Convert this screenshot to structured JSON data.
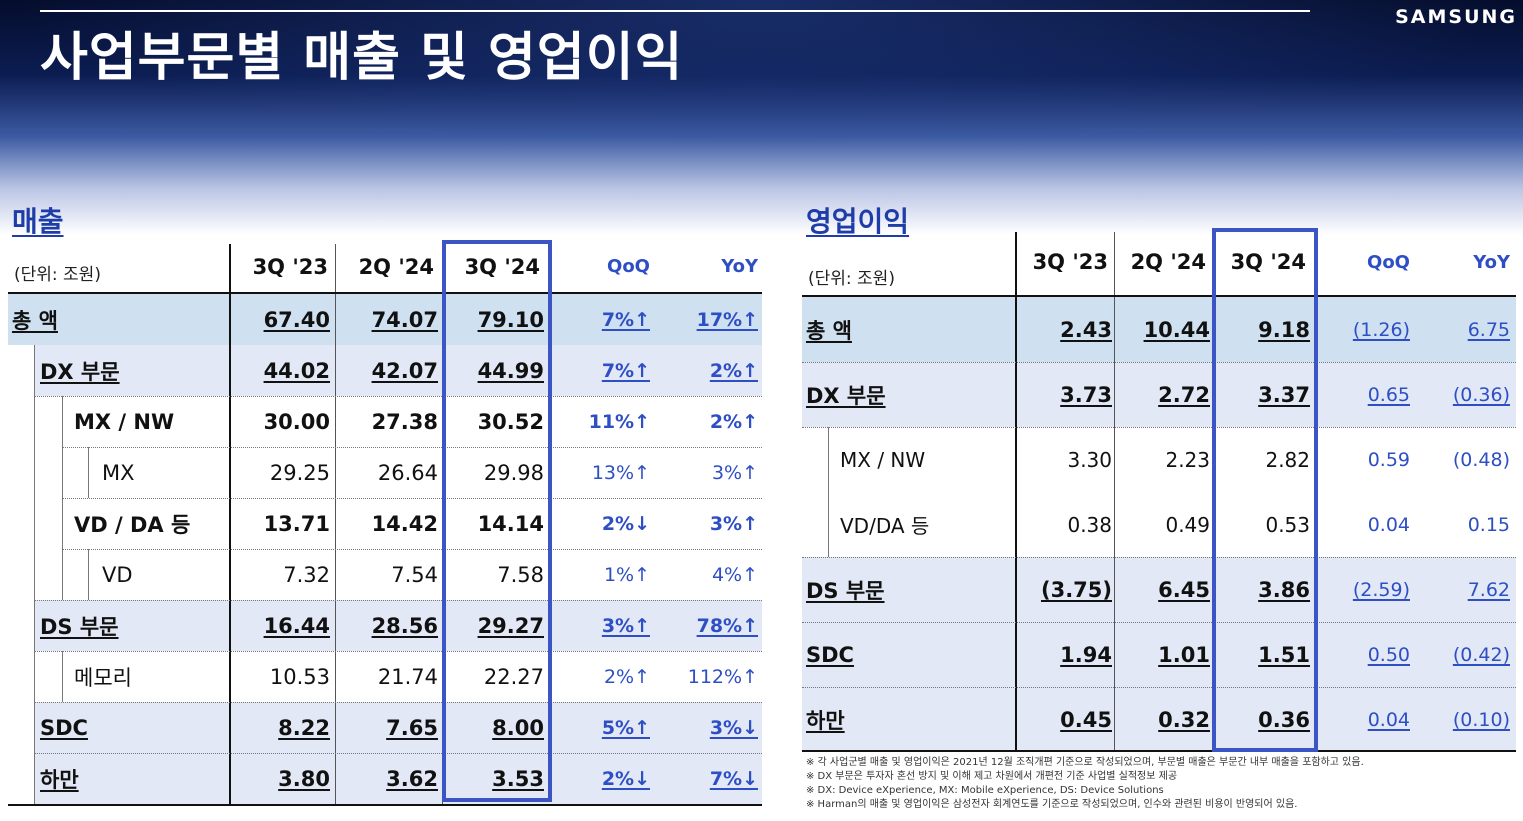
{
  "header": {
    "title": "사업부문별 매출 및 영업이익",
    "brand": "SAMSUNG"
  },
  "revenue": {
    "title": "매출",
    "unit": "(단위: 조원)",
    "columns": [
      "3Q '23",
      "2Q '24",
      "3Q '24",
      "QoQ",
      "YoY"
    ],
    "rows": [
      {
        "label": "총 액",
        "v1": "67.40",
        "v2": "74.07",
        "v3": "79.10",
        "qoq": "7%↑",
        "yoy": "17%↑"
      },
      {
        "label": "DX 부문",
        "v1": "44.02",
        "v2": "42.07",
        "v3": "44.99",
        "qoq": "7%↑",
        "yoy": "2%↑"
      },
      {
        "label": "MX / NW",
        "v1": "30.00",
        "v2": "27.38",
        "v3": "30.52",
        "qoq": "11%↑",
        "yoy": "2%↑"
      },
      {
        "label": "MX",
        "v1": "29.25",
        "v2": "26.64",
        "v3": "29.98",
        "qoq": "13%↑",
        "yoy": "3%↑"
      },
      {
        "label": "VD / DA 등",
        "v1": "13.71",
        "v2": "14.42",
        "v3": "14.14",
        "qoq": "2%↓",
        "yoy": "3%↑"
      },
      {
        "label": "VD",
        "v1": "7.32",
        "v2": "7.54",
        "v3": "7.58",
        "qoq": "1%↑",
        "yoy": "4%↑"
      },
      {
        "label": "DS 부문",
        "v1": "16.44",
        "v2": "28.56",
        "v3": "29.27",
        "qoq": "3%↑",
        "yoy": "78%↑"
      },
      {
        "label": "메모리",
        "v1": "10.53",
        "v2": "21.74",
        "v3": "22.27",
        "qoq": "2%↑",
        "yoy": "112%↑"
      },
      {
        "label": "SDC",
        "v1": "8.22",
        "v2": "7.65",
        "v3": "8.00",
        "qoq": "5%↑",
        "yoy": "3%↓"
      },
      {
        "label": "하만",
        "v1": "3.80",
        "v2": "3.62",
        "v3": "3.53",
        "qoq": "2%↓",
        "yoy": "7%↓"
      }
    ]
  },
  "operating_profit": {
    "title": "영업이익",
    "unit": "(단위: 조원)",
    "columns": [
      "3Q '23",
      "2Q '24",
      "3Q '24",
      "QoQ",
      "YoY"
    ],
    "rows": [
      {
        "label": "총 액",
        "v1": "2.43",
        "v2": "10.44",
        "v3": "9.18",
        "qoq": "(1.26)",
        "yoy": "6.75"
      },
      {
        "label": "DX 부문",
        "v1": "3.73",
        "v2": "2.72",
        "v3": "3.37",
        "qoq": "0.65",
        "yoy": "(0.36)"
      },
      {
        "label": "MX / NW",
        "v1": "3.30",
        "v2": "2.23",
        "v3": "2.82",
        "qoq": "0.59",
        "yoy": "(0.48)"
      },
      {
        "label": "VD/DA 등",
        "v1": "0.38",
        "v2": "0.49",
        "v3": "0.53",
        "qoq": "0.04",
        "yoy": "0.15"
      },
      {
        "label": "DS 부문",
        "v1": "(3.75)",
        "v2": "6.45",
        "v3": "3.86",
        "qoq": "(2.59)",
        "yoy": "7.62"
      },
      {
        "label": "SDC",
        "v1": "1.94",
        "v2": "1.01",
        "v3": "1.51",
        "qoq": "0.50",
        "yoy": "(0.42)"
      },
      {
        "label": "하만",
        "v1": "0.45",
        "v2": "0.32",
        "v3": "0.36",
        "qoq": "0.04",
        "yoy": "(0.10)"
      }
    ]
  },
  "footnotes": [
    "※ 각 사업군별 매출 및 영업이익은 2021년 12월 조직개편 기준으로 작성되었으며, 부문별 매출은 부문간 내부 매출을 포함하고 있음.",
    "※ DX 부문은 투자자 혼선 방지 및 이해 제고 차원에서 개편전 기준 사업별 실적정보 제공",
    "※ DX: Device eXperience, MX: Mobile eXperience, DS: Device Solutions",
    "※ Harman의 매출 및 영업이익은 삼성전자 회계연도를 기준으로 작성되었으며, 인수와 관련된 비용이 반영되어 있음."
  ],
  "colors": {
    "accent": "#3b55c4",
    "highlight_row": "#cfe0f1",
    "section_row": "#e2e8f5",
    "title_blue": "#1f3da8"
  }
}
